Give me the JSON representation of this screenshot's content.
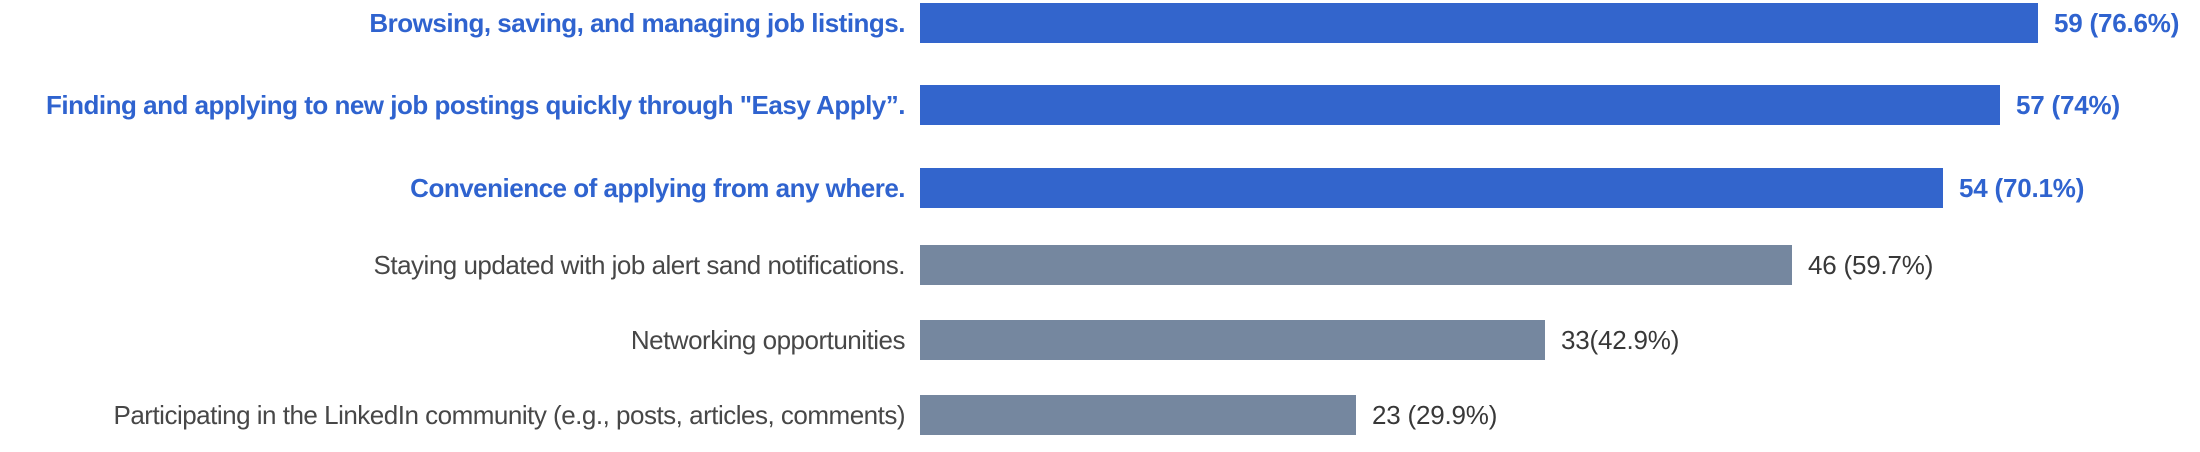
{
  "chart_data": {
    "type": "bar",
    "orientation": "horizontal",
    "title": "",
    "xlabel": "",
    "ylabel": "",
    "grid": false,
    "legend": null,
    "categories": [
      "Browsing, saving, and managing job listings.",
      "Finding and applying to new job postings quickly through \"Easy Apply”.",
      "Convenience of applying from any where.",
      "Staying updated with job alert sand notifications.",
      "Networking opportunities",
      "Participating in the LinkedIn community (e.g., posts, articles, comments)"
    ],
    "values": [
      59,
      57,
      54,
      46,
      33,
      23
    ],
    "percents": [
      76.6,
      74,
      70.1,
      59.7,
      42.9,
      29.9
    ],
    "value_labels": [
      "59 (76.6%)",
      "57 (74%)",
      "54 (70.1%)",
      "46 (59.7%)",
      "33(42.9%)",
      "23 (29.9%)"
    ],
    "highlighted": [
      true,
      true,
      true,
      false,
      false,
      false
    ],
    "colors": {
      "highlight_bar": "#3365cc",
      "muted_bar": "#75879f",
      "highlight_text": "#2f63cf",
      "muted_label_text": "#474747",
      "muted_value_text": "#383838",
      "background": "#ffffff"
    }
  }
}
